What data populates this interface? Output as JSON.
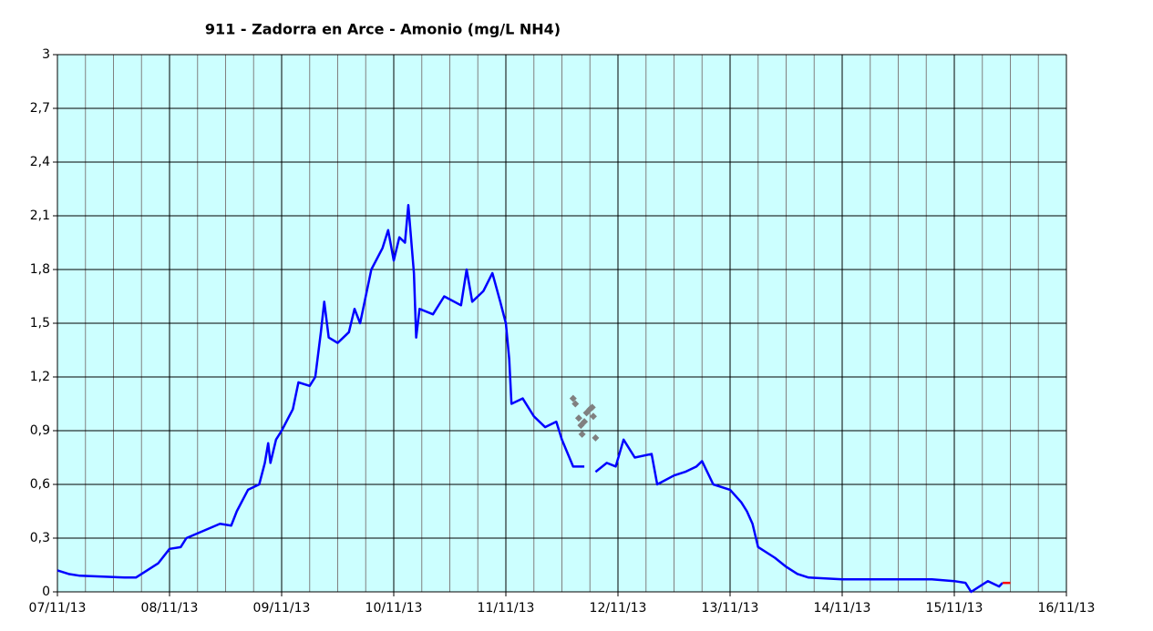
{
  "chart_data": {
    "type": "line",
    "title": "911 - Zadorra en Arce - Amonio (mg/L NH4)",
    "xlim": [
      0,
      9
    ],
    "xticks": [
      {
        "value": 0,
        "label": "07/11/13"
      },
      {
        "value": 1,
        "label": "08/11/13"
      },
      {
        "value": 2,
        "label": "09/11/13"
      },
      {
        "value": 3,
        "label": "10/11/13"
      },
      {
        "value": 4,
        "label": "11/11/13"
      },
      {
        "value": 5,
        "label": "12/11/13"
      },
      {
        "value": 6,
        "label": "13/11/13"
      },
      {
        "value": 7,
        "label": "14/11/13"
      },
      {
        "value": 8,
        "label": "15/11/13"
      },
      {
        "value": 9,
        "label": "16/11/13"
      }
    ],
    "ylim": [
      0,
      3
    ],
    "yticks": [
      0,
      {
        "value": 0.3,
        "label": "0,3"
      },
      {
        "value": 0.6,
        "label": "0,6"
      },
      {
        "value": 0.9,
        "label": "0,9"
      },
      {
        "value": 1.2,
        "label": "1,2"
      },
      {
        "value": 1.5,
        "label": "1,5"
      },
      {
        "value": 1.8,
        "label": "1,8"
      },
      {
        "value": 2.1,
        "label": "2,1"
      },
      {
        "value": 2.4,
        "label": "2,4"
      },
      {
        "value": 2.7,
        "label": "2,7"
      },
      3
    ],
    "grid": true,
    "plot_background": "#ccffff",
    "series": [
      {
        "type": "line",
        "color": "#0000ff",
        "x": [
          0,
          0.1,
          0.2,
          0.4,
          0.6,
          0.7,
          0.8,
          0.9,
          1.0,
          1.1,
          1.15,
          1.3,
          1.45,
          1.55,
          1.6,
          1.7,
          1.8,
          1.85,
          1.88,
          1.9,
          1.95,
          2.0,
          2.1,
          2.15,
          2.25,
          2.3,
          2.35,
          2.38,
          2.42,
          2.5,
          2.6,
          2.65,
          2.7,
          2.75,
          2.8,
          2.9,
          2.95,
          3.0,
          3.05,
          3.1,
          3.13,
          3.18,
          3.2,
          3.23,
          3.35,
          3.45,
          3.6,
          3.65,
          3.7,
          3.8,
          3.88,
          3.95,
          4.0,
          4.03,
          4.05,
          4.15,
          4.25,
          4.35,
          4.45,
          4.5,
          4.6,
          4.7,
          4.75,
          4.8,
          4.9,
          4.98,
          5.05,
          5.15,
          5.3,
          5.35,
          5.5,
          5.6,
          5.7,
          5.75,
          5.85,
          6.0,
          6.1,
          6.15,
          6.2,
          6.25,
          6.4,
          6.5,
          6.6,
          6.7,
          7.0,
          7.4,
          7.8,
          8.0,
          8.1,
          8.15,
          8.3,
          8.4,
          8.43
        ],
        "values": [
          0.12,
          0.1,
          0.09,
          0.085,
          0.08,
          0.08,
          0.12,
          0.16,
          0.24,
          0.25,
          0.3,
          0.34,
          0.38,
          0.37,
          0.45,
          0.57,
          0.6,
          0.72,
          0.83,
          0.72,
          0.85,
          0.9,
          1.02,
          1.17,
          1.15,
          1.2,
          1.45,
          1.62,
          1.42,
          1.39,
          1.45,
          1.58,
          1.5,
          1.65,
          1.8,
          1.92,
          2.02,
          1.85,
          1.98,
          1.95,
          2.16,
          1.78,
          1.42,
          1.58,
          1.55,
          1.65,
          1.6,
          1.8,
          1.62,
          1.68,
          1.78,
          1.62,
          1.5,
          1.3,
          1.05,
          1.08,
          0.98,
          0.92,
          0.95,
          0.85,
          0.7,
          0.7,
          null,
          0.67,
          0.72,
          0.7,
          0.85,
          0.75,
          0.77,
          0.6,
          0.65,
          0.67,
          0.7,
          0.73,
          0.6,
          0.57,
          0.5,
          0.45,
          0.38,
          0.25,
          0.19,
          0.14,
          0.1,
          0.08,
          0.07,
          0.07,
          0.07,
          0.06,
          0.05,
          0,
          0.06,
          0.03,
          0.05
        ]
      },
      {
        "type": "scatter",
        "color": "#808080",
        "x": [
          4.6,
          4.62,
          4.65,
          4.67,
          4.68,
          4.7,
          4.72,
          4.75,
          4.77,
          4.78,
          4.8
        ],
        "values": [
          1.08,
          1.05,
          0.97,
          0.93,
          0.88,
          0.95,
          1.0,
          1.02,
          1.03,
          0.98,
          0.86
        ]
      },
      {
        "type": "line",
        "color": "#ff0000",
        "x": [
          8.43,
          8.5
        ],
        "values": [
          0.05,
          0.05
        ]
      }
    ]
  }
}
